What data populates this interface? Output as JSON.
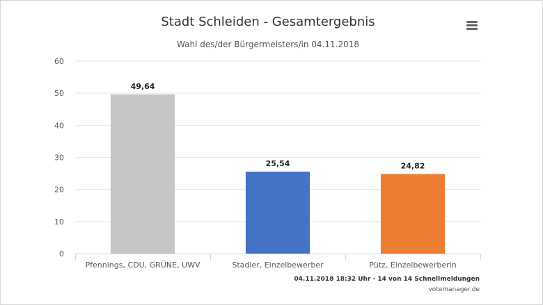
{
  "header": {
    "title": "Stadt Schleiden - Gesamtergebnis",
    "subtitle": "Wahl des/der Bürgermeisters/in 04.11.2018",
    "menu_icon": "hamburger-menu-icon"
  },
  "footer": {
    "timestamp": "04.11.2018 18:32 Uhr - 14 von 14 Schnellmeldungen",
    "source": "votemanager.de"
  },
  "chart_data": {
    "type": "bar",
    "title": "Stadt Schleiden - Gesamtergebnis",
    "subtitle": "Wahl des/der Bürgermeisters/in 04.11.2018",
    "xlabel": "",
    "ylabel": "",
    "categories": [
      "Pfennings, CDU, GRÜNE, UWV",
      "Stadler, Einzelbewerber",
      "Pütz, Einzelbewerberin"
    ],
    "values": [
      49.64,
      25.54,
      24.82
    ],
    "value_labels": [
      "49,64",
      "25,54",
      "24,82"
    ],
    "colors": [
      "#c6c6c6",
      "#4472c4",
      "#ed7d31"
    ],
    "ylim": [
      0,
      60
    ],
    "yticks": [
      0,
      10,
      20,
      30,
      40,
      50,
      60
    ],
    "grid": true,
    "legend": "none"
  }
}
